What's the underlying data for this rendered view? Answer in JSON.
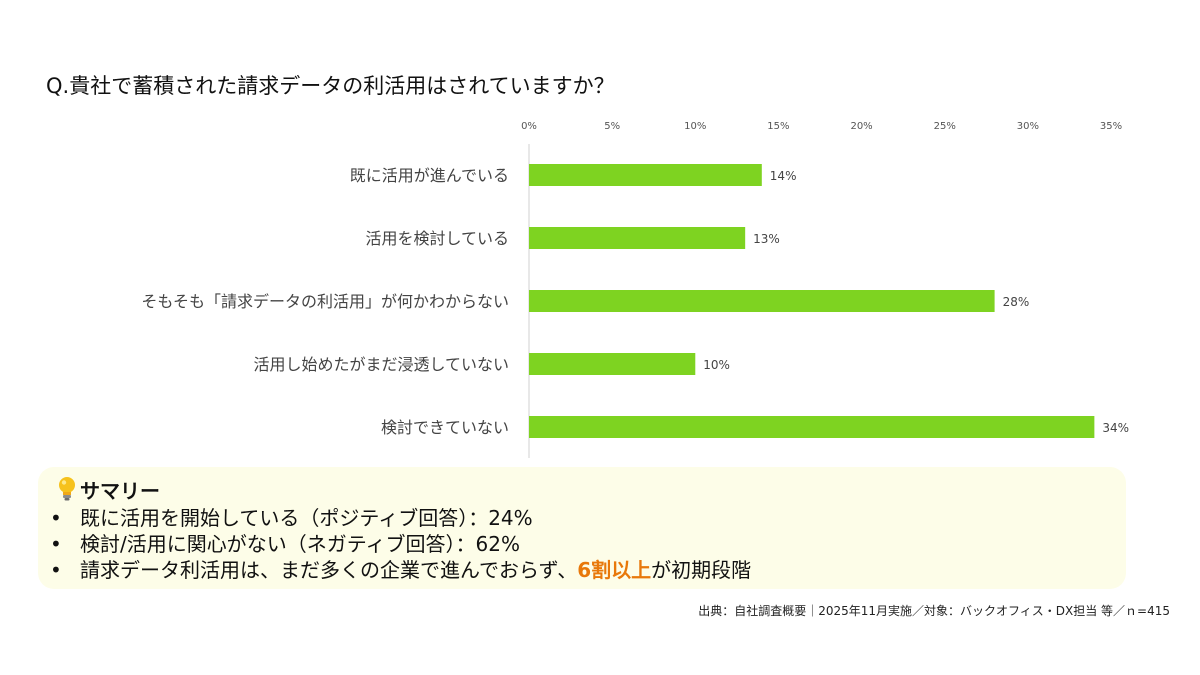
{
  "question": "Q.貴社で蓄積された請求データの利活用はされていますか？",
  "chart_data": {
    "type": "bar",
    "orientation": "horizontal",
    "categories": [
      "既に活用が進んでいる",
      "活用を検討している",
      "そもそも「請求データの利活用」が何かわからない",
      "活用し始めたがまだ浸透していない",
      "検討できていない"
    ],
    "values": [
      14,
      13,
      28,
      10,
      34
    ],
    "value_labels": [
      "14%",
      "13%",
      "28%",
      "10%",
      "34%"
    ],
    "xlim": [
      0,
      35
    ],
    "ticks": [
      0,
      5,
      10,
      15,
      20,
      25,
      30,
      35
    ],
    "tick_labels": [
      "0%",
      "5%",
      "10%",
      "15%",
      "20%",
      "25%",
      "30%",
      "35%"
    ],
    "axis_position": "top",
    "grid": false,
    "bar_color": "#7ed321"
  },
  "summary": {
    "title": "サマリー",
    "icon": "lightbulb-icon",
    "items": [
      {
        "bullet": "•",
        "text": "既に活用を開始している（ポジティブ回答）：24%"
      },
      {
        "bullet": "•",
        "text": "検討/活用に関心がない（ネガティブ回答）：62%"
      },
      {
        "bullet": "•",
        "text_before": "請求データ利活用は、まだ多くの企業で進んでおらず、",
        "highlight": "6割以上",
        "text_after": "が初期段階"
      }
    ],
    "highlight_color": "#e8780a",
    "background": "#fdfde8"
  },
  "source": "出典：自社調査概要｜2025年11月実施／対象：バックオフィス・DX担当 等／ｎ=415"
}
